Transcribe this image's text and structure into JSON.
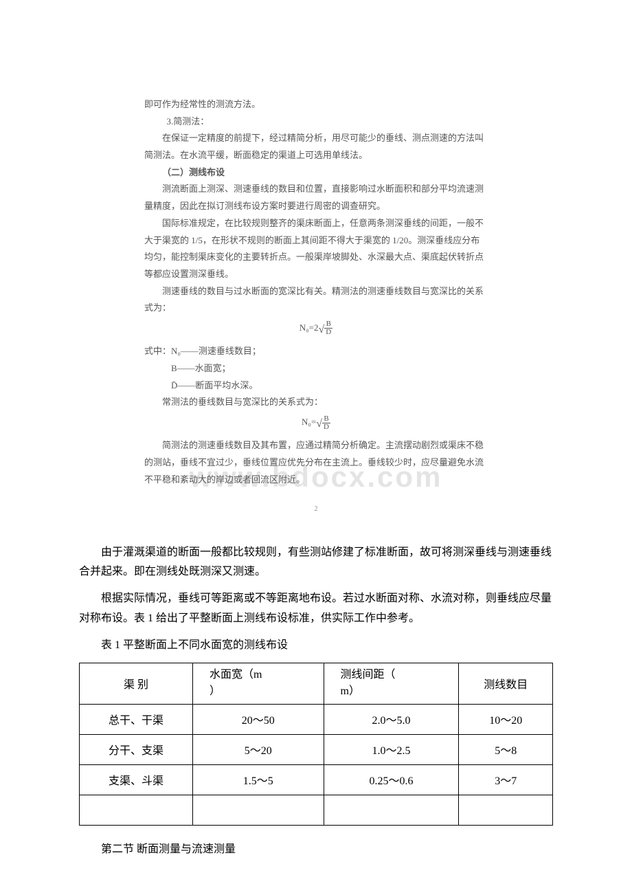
{
  "scanned": {
    "line_opening": "即可作为经常性的测流方法。",
    "method3_title": "3.简测法：",
    "method3_p1": "在保证一定精度的前提下，经过精简分析，用尽可能少的垂线、测点测速的方法叫简测法。在水流平缓，断面稳定的渠道上可选用单线法。",
    "section2_title": "（二）测线布设",
    "section2_p1": "测流断面上测深、测速垂线的数目和位置，直接影响过水断面积和部分平均流速测量精度，因此在拟订测线布设方案时要进行周密的调查研究。",
    "section2_p2": "国际标准规定，在比较规则整齐的渠床断面上，任意两条测深垂线的间距，一般不大于渠宽的 1/5，在形状不规则的断面上其间距不得大于渠宽的 1/20。测深垂线应分布均匀，能控制渠床变化的主要转折点。一般渠岸坡脚处、水深最大点、渠底起伏转折点等都应设置测深垂线。",
    "section2_p3": "测速垂线的数目与过水断面的宽深比有关。精测法的测速垂线数目与宽深比的关系式为：",
    "formula1_label": "N₀=2",
    "formula1_num": "B",
    "formula1_den": "D",
    "def_intro": "式中：N₀——测速垂线数目；",
    "def_b": "B——水面宽；",
    "def_d": "D̄——断面平均水深。",
    "normal_method": "常测法的垂线数目与宽深比的关系式为：",
    "formula2_label": "N₀=",
    "formula2_num": "B",
    "formula2_den": "D",
    "simple_method_p": "简测法的测速垂线数目及其布置，应通过精简分析确定。主流摆动剧烈或渠床不稳的测站，垂线不宜过少，垂线位置应优先分布在主流上。垂线较少时，应尽量避免水流不平稳和紊动大的岸边或者回流区附近。",
    "watermark": "www.bdocx.com",
    "page_number": "2"
  },
  "main": {
    "p1": "由于灌溉渠道的断面一般都比较规则，有些测站修建了标准断面，故可将测深垂线与测速垂线合并起来。即在测线处既测深又测速。",
    "p2": "根据实际情况，垂线可等距离或不等距离地布设。若过水断面对称、水流对称，则垂线应尽量对称布设。表 1 给出了平整断面上测线布设标准，供实际工作中参考。",
    "table_caption": "表 1 平整断面上不同水面宽的测线布设"
  },
  "table": {
    "headers": {
      "col1": "渠 别",
      "col2_l1": "水面宽（m",
      "col2_l2": "）",
      "col3_l1": "测线间距（",
      "col3_l2": "m）",
      "col4": "测线数目"
    },
    "rows": [
      {
        "c1": "总干、干渠",
        "c2": "20～50",
        "c3": "2.0～5.0",
        "c4": "10～20"
      },
      {
        "c1": "分干、支渠",
        "c2": "5～20",
        "c3": "1.0～2.5",
        "c4": "5～8"
      },
      {
        "c1": "支渠、斗渠",
        "c2": "1.5～5",
        "c3": "0.25～0.6",
        "c4": "3～7"
      },
      {
        "c1": "",
        "c2": "",
        "c3": "",
        "c4": ""
      }
    ]
  },
  "heading2": "第二节 断面测量与流速测量"
}
